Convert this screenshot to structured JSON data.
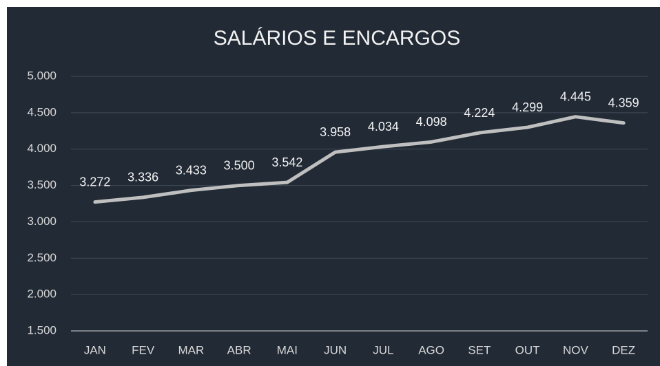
{
  "chart_data": {
    "type": "line",
    "title": "SALÁRIOS E ENCARGOS",
    "categories": [
      "JAN",
      "FEV",
      "MAR",
      "ABR",
      "MAI",
      "JUN",
      "JUL",
      "AGO",
      "SET",
      "OUT",
      "NOV",
      "DEZ"
    ],
    "values": [
      3272,
      3336,
      3433,
      3500,
      3542,
      3958,
      4034,
      4098,
      4224,
      4299,
      4445,
      4359
    ],
    "value_labels": [
      "3.272",
      "3.336",
      "3.433",
      "3.500",
      "3.542",
      "3.958",
      "4.034",
      "4.098",
      "4.224",
      "4.299",
      "4.445",
      "4.359"
    ],
    "color": "#bfbfbf",
    "ylim": [
      1500,
      5000
    ],
    "yticks": [
      {
        "value": 1500,
        "label": "1.500"
      },
      {
        "value": 2000,
        "label": "2.000"
      },
      {
        "value": 2500,
        "label": "2.500"
      },
      {
        "value": 3000,
        "label": "3.000"
      },
      {
        "value": 3500,
        "label": "3.500"
      },
      {
        "value": 4000,
        "label": "4.000"
      },
      {
        "value": 4500,
        "label": "4.500"
      },
      {
        "value": 5000,
        "label": "5.000"
      }
    ],
    "grid": true
  }
}
